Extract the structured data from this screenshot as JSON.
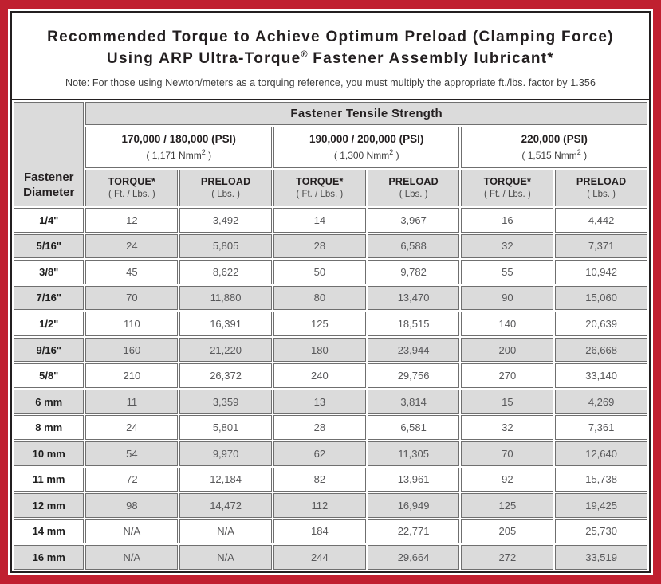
{
  "colors": {
    "frame_red": "#C02030",
    "cell_gray": "#DBDBDB",
    "border_gray": "#6F6F6F",
    "title_black": "#231F20",
    "value_gray": "#58585A"
  },
  "title": {
    "line1": "Recommended Torque to Achieve Optimum Preload (Clamping Force)",
    "line2_pre": "Using ARP Ultra-Torque",
    "line2_reg": "®",
    "line2_post": " Fastener Assembly lubricant*",
    "note": "Note: For those using Newton/meters as a torquing reference, you must multiply the appropriate ft./lbs. factor by 1.356"
  },
  "table": {
    "banner": "Fastener Tensile Strength",
    "diameter_header": "Fastener Diameter",
    "strength_groups": [
      {
        "psi": "170,000 / 180,000 (PSI)",
        "nmm_pre": "( 1,171 Nmm",
        "nmm_sup": "2",
        "nmm_post": " )"
      },
      {
        "psi": "190,000 / 200,000 (PSI)",
        "nmm_pre": "( 1,300 Nmm",
        "nmm_sup": "2",
        "nmm_post": " )"
      },
      {
        "psi": "220,000 (PSI)",
        "nmm_pre": "( 1,515 Nmm",
        "nmm_sup": "2",
        "nmm_post": " )"
      }
    ],
    "col_headers": {
      "torque": "TORQUE*",
      "torque_sub": "( Ft. / Lbs. )",
      "preload": "PRELOAD",
      "preload_sub": "( Lbs. )"
    },
    "rows": [
      {
        "dia": "1/4\"",
        "values": [
          "12",
          "3,492",
          "14",
          "3,967",
          "16",
          "4,442"
        ]
      },
      {
        "dia": "5/16\"",
        "values": [
          "24",
          "5,805",
          "28",
          "6,588",
          "32",
          "7,371"
        ]
      },
      {
        "dia": "3/8\"",
        "values": [
          "45",
          "8,622",
          "50",
          "9,782",
          "55",
          "10,942"
        ]
      },
      {
        "dia": "7/16\"",
        "values": [
          "70",
          "11,880",
          "80",
          "13,470",
          "90",
          "15,060"
        ]
      },
      {
        "dia": "1/2\"",
        "values": [
          "110",
          "16,391",
          "125",
          "18,515",
          "140",
          "20,639"
        ]
      },
      {
        "dia": "9/16\"",
        "values": [
          "160",
          "21,220",
          "180",
          "23,944",
          "200",
          "26,668"
        ]
      },
      {
        "dia": "5/8\"",
        "values": [
          "210",
          "26,372",
          "240",
          "29,756",
          "270",
          "33,140"
        ]
      },
      {
        "dia": "6 mm",
        "values": [
          "11",
          "3,359",
          "13",
          "3,814",
          "15",
          "4,269"
        ]
      },
      {
        "dia": "8 mm",
        "values": [
          "24",
          "5,801",
          "28",
          "6,581",
          "32",
          "7,361"
        ]
      },
      {
        "dia": "10 mm",
        "values": [
          "54",
          "9,970",
          "62",
          "11,305",
          "70",
          "12,640"
        ]
      },
      {
        "dia": "11 mm",
        "values": [
          "72",
          "12,184",
          "82",
          "13,961",
          "92",
          "15,738"
        ]
      },
      {
        "dia": "12 mm",
        "values": [
          "98",
          "14,472",
          "112",
          "16,949",
          "125",
          "19,425"
        ]
      },
      {
        "dia": "14 mm",
        "values": [
          "N/A",
          "N/A",
          "184",
          "22,771",
          "205",
          "25,730"
        ]
      },
      {
        "dia": "16 mm",
        "values": [
          "N/A",
          "N/A",
          "244",
          "29,664",
          "272",
          "33,519"
        ]
      }
    ]
  }
}
